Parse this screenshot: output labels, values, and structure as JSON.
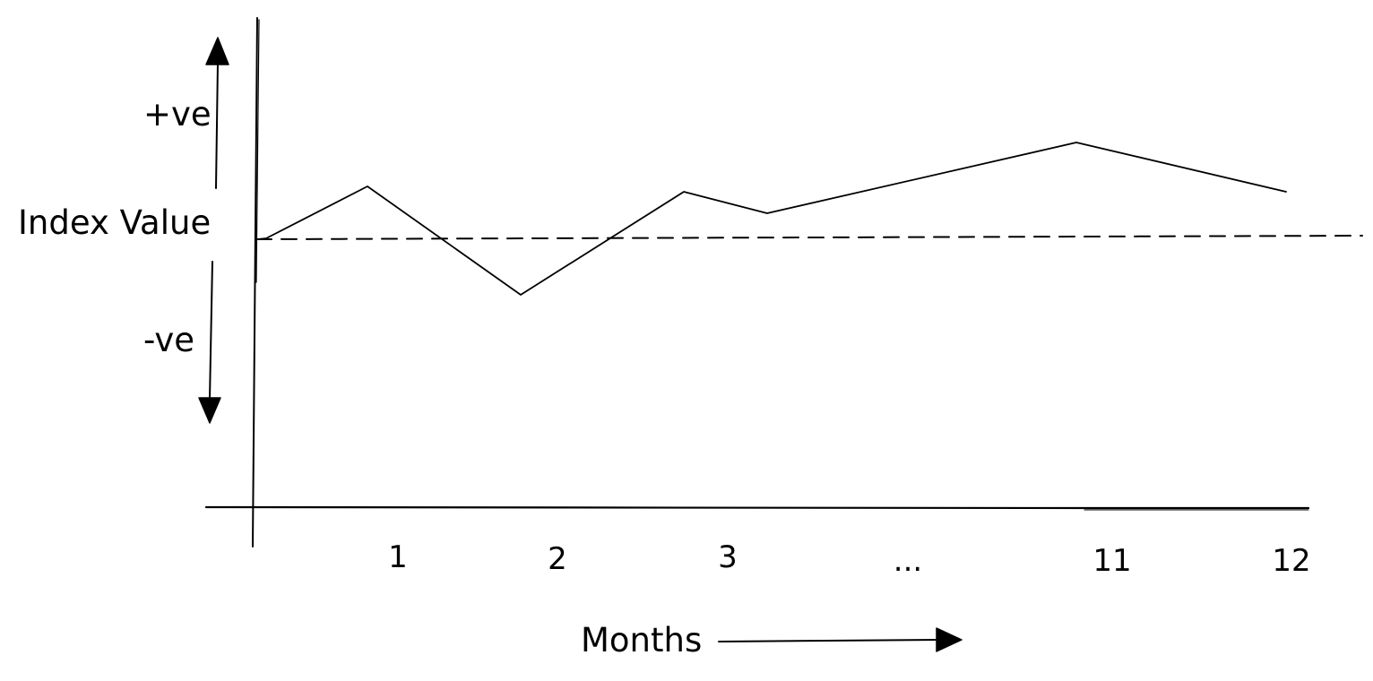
{
  "diagram": {
    "y_axis": {
      "label": "Index Value",
      "positive_label": "+ve",
      "negative_label": "-ve"
    },
    "x_axis": {
      "label": "Months",
      "ticks": [
        "1",
        "2",
        "3",
        "...",
        "11",
        "12"
      ]
    },
    "baseline": "dashed horizontal reference line at the index value",
    "colors": {
      "ink": "#000000",
      "background": "#ffffff"
    }
  }
}
